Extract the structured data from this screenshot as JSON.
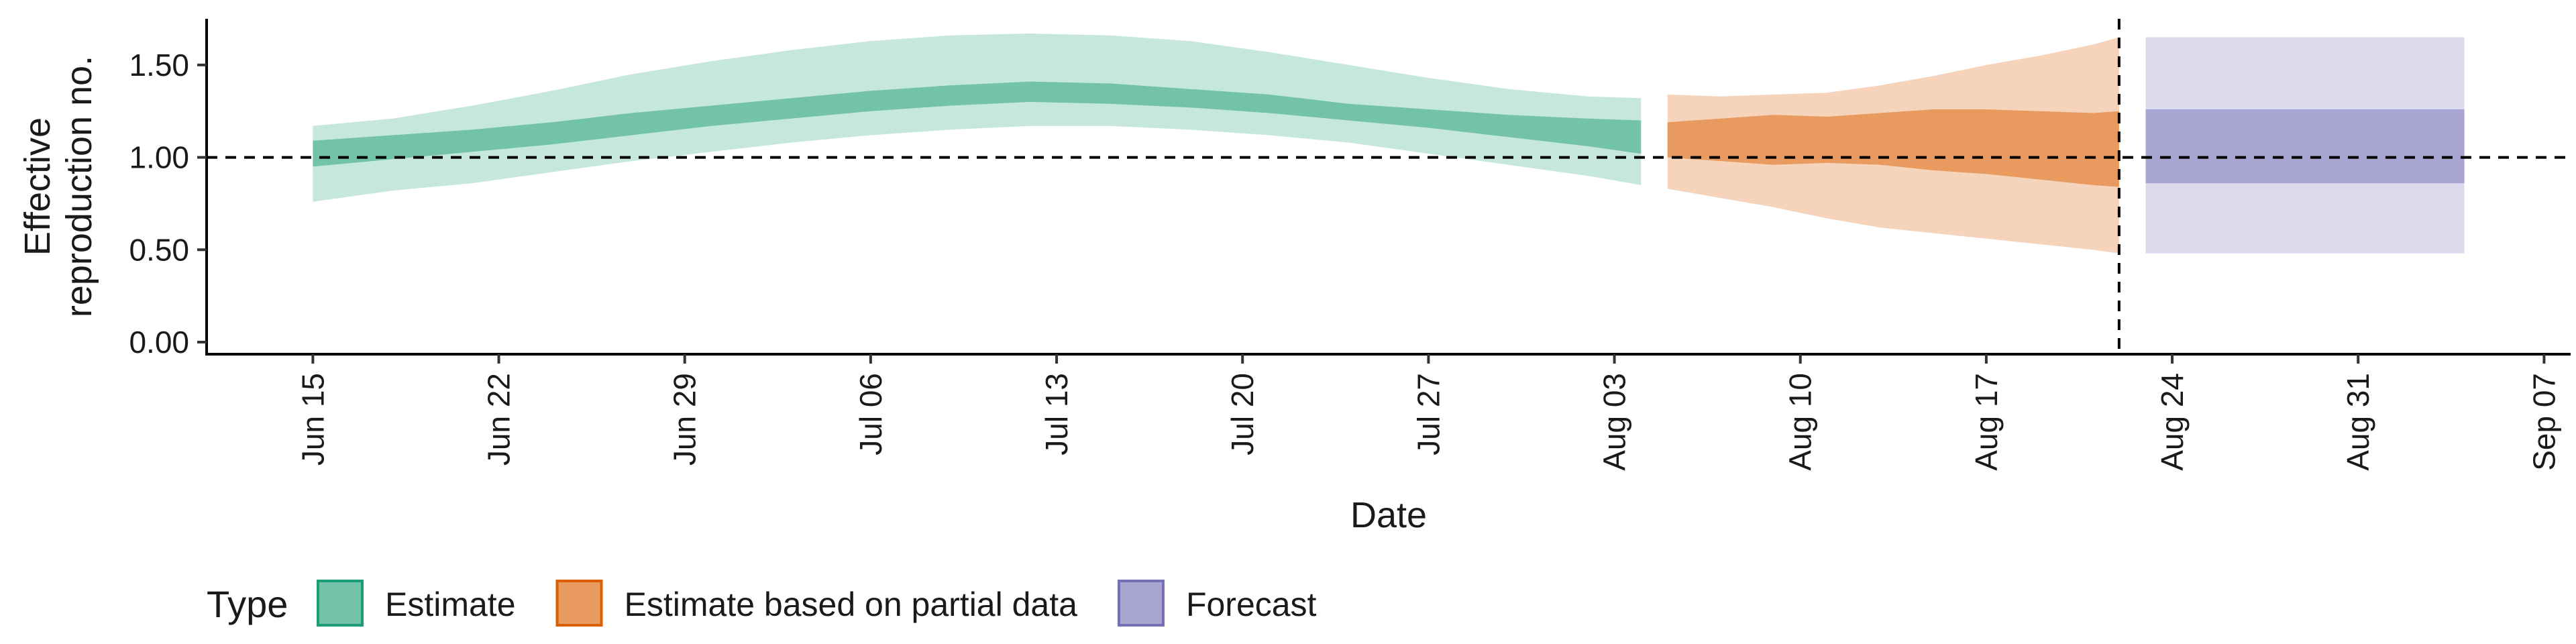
{
  "chart_data": {
    "type": "area",
    "xlabel": "Date",
    "ylabel_lines": [
      "Effective",
      "reproduction no."
    ],
    "ylim": [
      0,
      1.75
    ],
    "xlim": [
      "2020-06-11",
      "2020-09-08"
    ],
    "y_ticks": [
      0.0,
      0.5,
      1.0,
      1.5
    ],
    "y_tick_labels": [
      "0.00",
      "0.50",
      "1.00",
      "1.50"
    ],
    "x_ticks": [
      "2020-06-15",
      "2020-06-22",
      "2020-06-29",
      "2020-07-06",
      "2020-07-13",
      "2020-07-20",
      "2020-07-27",
      "2020-08-03",
      "2020-08-10",
      "2020-08-17",
      "2020-08-24",
      "2020-08-31",
      "2020-09-07"
    ],
    "x_tick_labels": [
      "Jun 15",
      "Jun 22",
      "Jun 29",
      "Jul 06",
      "Jul 13",
      "Jul 20",
      "Jul 27",
      "Aug 03",
      "Aug 10",
      "Aug 17",
      "Aug 24",
      "Aug 31",
      "Sep 07"
    ],
    "reference_line_y": 1.0,
    "forecast_start_date": "2020-08-22",
    "grid": false,
    "legend": {
      "title": "Type",
      "position": "bottom-left",
      "entries": [
        {
          "label": "Estimate",
          "fill": "#72c3a7",
          "border": "#1b9e77"
        },
        {
          "label": "Estimate based on partial data",
          "fill": "#e89a5f",
          "border": "#d95f02"
        },
        {
          "label": "Forecast",
          "fill": "#a8a5d3",
          "border": "#7570b3"
        }
      ]
    },
    "series": [
      {
        "type_label": "Estimate",
        "color_outer": "#c5e7dc",
        "color_inner": "#72c3a7",
        "x": [
          "2020-06-15",
          "2020-06-18",
          "2020-06-21",
          "2020-06-24",
          "2020-06-27",
          "2020-06-30",
          "2020-07-03",
          "2020-07-06",
          "2020-07-09",
          "2020-07-12",
          "2020-07-15",
          "2020-07-18",
          "2020-07-21",
          "2020-07-24",
          "2020-07-27",
          "2020-07-30",
          "2020-08-02",
          "2020-08-04"
        ],
        "outer_lower": [
          0.76,
          0.82,
          0.86,
          0.92,
          0.98,
          1.03,
          1.08,
          1.12,
          1.15,
          1.17,
          1.17,
          1.15,
          1.12,
          1.08,
          1.02,
          0.96,
          0.9,
          0.85
        ],
        "outer_upper": [
          1.17,
          1.21,
          1.28,
          1.36,
          1.45,
          1.52,
          1.58,
          1.63,
          1.66,
          1.67,
          1.66,
          1.63,
          1.57,
          1.5,
          1.43,
          1.37,
          1.33,
          1.32
        ],
        "inner_lower": [
          0.95,
          0.99,
          1.03,
          1.07,
          1.12,
          1.17,
          1.21,
          1.25,
          1.28,
          1.3,
          1.29,
          1.27,
          1.24,
          1.2,
          1.16,
          1.11,
          1.06,
          1.02
        ],
        "inner_upper": [
          1.09,
          1.12,
          1.15,
          1.19,
          1.24,
          1.28,
          1.32,
          1.36,
          1.39,
          1.41,
          1.4,
          1.37,
          1.34,
          1.29,
          1.26,
          1.23,
          1.21,
          1.2
        ]
      },
      {
        "type_label": "Estimate based on partial data",
        "color_outer": "#f5d4bb",
        "color_inner": "#e89a5f",
        "x": [
          "2020-08-05",
          "2020-08-07",
          "2020-08-09",
          "2020-08-11",
          "2020-08-13",
          "2020-08-15",
          "2020-08-17",
          "2020-08-19",
          "2020-08-21",
          "2020-08-22"
        ],
        "outer_lower": [
          0.83,
          0.78,
          0.73,
          0.67,
          0.62,
          0.59,
          0.56,
          0.53,
          0.5,
          0.48
        ],
        "outer_upper": [
          1.34,
          1.33,
          1.34,
          1.35,
          1.39,
          1.44,
          1.5,
          1.55,
          1.61,
          1.65
        ],
        "inner_lower": [
          1.0,
          0.98,
          0.96,
          0.97,
          0.96,
          0.93,
          0.91,
          0.88,
          0.85,
          0.84
        ],
        "inner_upper": [
          1.19,
          1.21,
          1.23,
          1.22,
          1.24,
          1.26,
          1.26,
          1.25,
          1.24,
          1.25
        ]
      },
      {
        "type_label": "Forecast",
        "color_outer": "#dcdbee",
        "color_inner": "#a8a5d3",
        "x": [
          "2020-08-23",
          "2020-09-04"
        ],
        "outer_lower": [
          0.48,
          0.48
        ],
        "outer_upper": [
          1.65,
          1.65
        ],
        "inner_lower": [
          0.86,
          0.86
        ],
        "inner_upper": [
          1.26,
          1.26
        ]
      }
    ]
  }
}
